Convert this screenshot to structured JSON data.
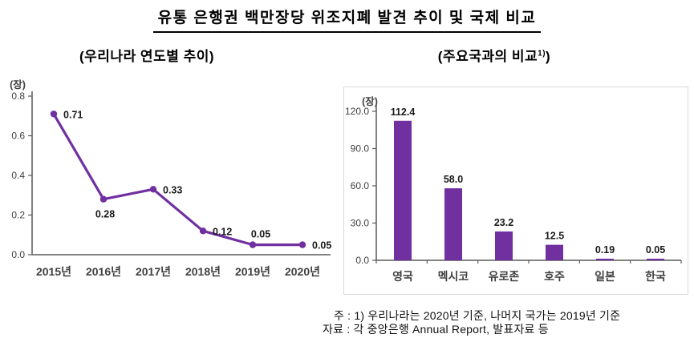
{
  "page": {
    "title": "유통 은행권 백만장당 위조지폐 발견 추이 및 국제 비교",
    "notes": [
      "주 : 1) 우리나라는 2020년 기준, 나머지 국가는 2019년 기준",
      "자료 : 각 중앙은행 Annual Report, 발표자료 등"
    ]
  },
  "colors": {
    "series": "#7030A0",
    "axis": "#595959",
    "tick_label": "#404040",
    "data_label": "#1a1a1a",
    "frame_border": "#d9d9d9"
  },
  "chart_data": [
    {
      "type": "line",
      "title": "(우리나라 연도별 추이)",
      "unit_label": "(장)",
      "categories": [
        "2015년",
        "2016년",
        "2017년",
        "2018년",
        "2019년",
        "2020년"
      ],
      "values": [
        0.71,
        0.28,
        0.33,
        0.12,
        0.05,
        0.05
      ],
      "value_labels": [
        "0.71",
        "0.28",
        "0.33",
        "0.12",
        "0.05",
        "0.05"
      ],
      "label_positions": [
        "right",
        "below",
        "right",
        "right",
        "above",
        "right"
      ],
      "ylim": [
        0,
        0.8
      ],
      "ytick_labels": [
        "0.0",
        "0.2",
        "0.4",
        "0.6",
        "0.8"
      ],
      "grid": false,
      "legend": "none"
    },
    {
      "type": "bar",
      "title_prefix": "(주요국과의 비교",
      "title_superscript": "1)",
      "title_suffix": ")",
      "unit_label": "(장)",
      "categories": [
        "영국",
        "멕시코",
        "유로존",
        "호주",
        "일본",
        "한국"
      ],
      "values": [
        112.4,
        58.0,
        23.2,
        12.5,
        0.19,
        0.05
      ],
      "value_labels": [
        "112.4",
        "58.0",
        "23.2",
        "12.5",
        "0.19",
        "0.05"
      ],
      "ylim": [
        0,
        120
      ],
      "ytick_labels": [
        "0.0",
        "30.0",
        "60.0",
        "90.0",
        "120.0"
      ],
      "grid": false,
      "legend": "none"
    }
  ]
}
